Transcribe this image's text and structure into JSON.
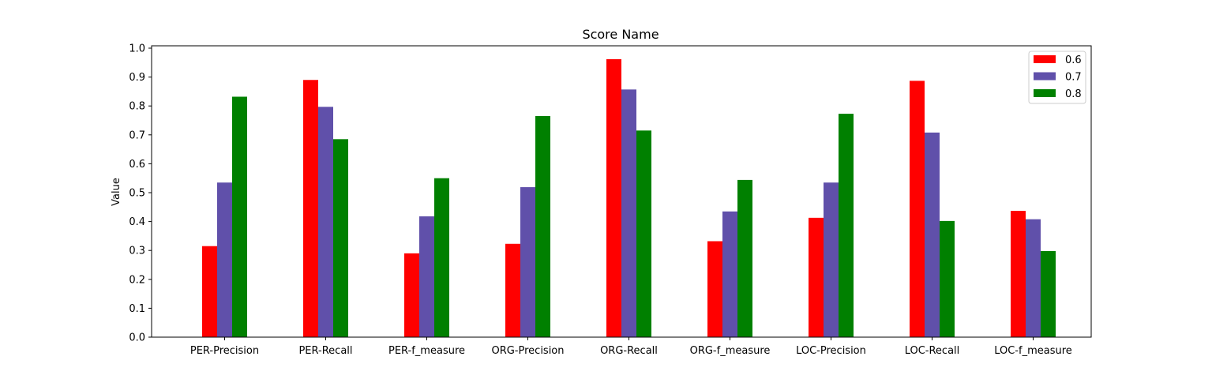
{
  "chart_data": {
    "type": "bar",
    "title": "Score Name",
    "xlabel": "",
    "ylabel": "Value",
    "ylim": [
      0,
      1.0
    ],
    "yticks": [
      "0.0",
      "0.1",
      "0.2",
      "0.3",
      "0.4",
      "0.5",
      "0.6",
      "0.7",
      "0.8",
      "0.9",
      "1.0"
    ],
    "grid": false,
    "legend_position": "top-right",
    "categories": [
      "PER-Precision",
      "PER-Recall",
      "PER-f_measure",
      "ORG-Precision",
      "ORG-Recall",
      "ORG-f_measure",
      "LOC-Precision",
      "LOC-Recall",
      "LOC-f_measure"
    ],
    "series": [
      {
        "name": "0.6",
        "color": "#ff0000",
        "values": [
          0.315,
          0.89,
          0.29,
          0.323,
          0.962,
          0.332,
          0.413,
          0.887,
          0.437
        ]
      },
      {
        "name": "0.7",
        "color": "#6050aa",
        "values": [
          0.535,
          0.797,
          0.418,
          0.519,
          0.857,
          0.435,
          0.535,
          0.708,
          0.408
        ]
      },
      {
        "name": "0.8",
        "color": "#008000",
        "values": [
          0.832,
          0.685,
          0.55,
          0.765,
          0.715,
          0.544,
          0.773,
          0.402,
          0.298
        ]
      }
    ]
  }
}
